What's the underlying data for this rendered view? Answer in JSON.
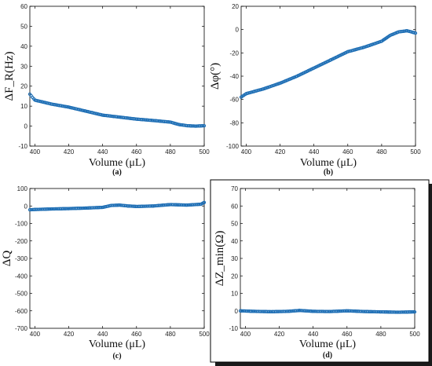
{
  "figure": {
    "frame_shadow": true
  },
  "chart_data": [
    {
      "type": "scatter",
      "panel": "a",
      "caption": "(a)",
      "xlabel": "Volume (μL)",
      "ylabel": "ΔF_R(Hz)",
      "xlim": [
        397,
        500
      ],
      "ylim": [
        -10,
        60
      ],
      "xticks": [
        400,
        420,
        440,
        460,
        480,
        500
      ],
      "yticks": [
        -10,
        0,
        10,
        20,
        30,
        40,
        50,
        60
      ],
      "marker_color": "#1f6fb5",
      "series": [
        {
          "x": [
            397,
            400,
            405,
            410,
            420,
            430,
            440,
            450,
            460,
            470,
            480,
            485,
            490,
            495,
            500
          ],
          "y": [
            16,
            13,
            12,
            11,
            9.5,
            7.5,
            5.5,
            4.5,
            3.5,
            2.8,
            2.0,
            0.8,
            0.2,
            0,
            0.2
          ]
        }
      ]
    },
    {
      "type": "scatter",
      "panel": "b",
      "caption": "(b)",
      "xlabel": "Volume (μL)",
      "ylabel": "Δφ(°)",
      "xlim": [
        397,
        500
      ],
      "ylim": [
        -100,
        20
      ],
      "xticks": [
        400,
        420,
        440,
        460,
        480,
        500
      ],
      "yticks": [
        -100,
        -80,
        -60,
        -40,
        -20,
        0,
        20
      ],
      "marker_color": "#1f6fb5",
      "series": [
        {
          "x": [
            397,
            400,
            410,
            420,
            430,
            440,
            450,
            460,
            470,
            480,
            485,
            490,
            495,
            500
          ],
          "y": [
            -58,
            -55,
            -51,
            -46,
            -40,
            -33,
            -26,
            -19,
            -15,
            -10,
            -5,
            -2,
            -1,
            -3
          ]
        }
      ]
    },
    {
      "type": "scatter",
      "panel": "c",
      "caption": "(c)",
      "xlabel": "Volume (μL)",
      "ylabel": "ΔQ",
      "xlim": [
        397,
        500
      ],
      "ylim": [
        -700,
        100
      ],
      "xticks": [
        400,
        420,
        440,
        460,
        480,
        500
      ],
      "yticks": [
        -700,
        -600,
        -500,
        -400,
        -300,
        -200,
        -100,
        0,
        100
      ],
      "marker_color": "#1f6fb5",
      "series": [
        {
          "x": [
            397,
            400,
            410,
            420,
            430,
            440,
            445,
            450,
            455,
            460,
            470,
            480,
            490,
            498,
            500
          ],
          "y": [
            -22,
            -20,
            -17,
            -15,
            -12,
            -8,
            3,
            5,
            0,
            -3,
            0,
            8,
            5,
            10,
            20
          ]
        }
      ]
    },
    {
      "type": "scatter",
      "panel": "d",
      "caption": "(d)",
      "xlabel": "Volume (μL)",
      "ylabel": "ΔZ_min(Ω)",
      "xlim": [
        397,
        500
      ],
      "ylim": [
        -10,
        70
      ],
      "xticks": [
        400,
        420,
        440,
        460,
        480,
        500
      ],
      "yticks": [
        -10,
        0,
        10,
        20,
        30,
        40,
        50,
        60,
        70
      ],
      "marker_color": "#1f6fb5",
      "series": [
        {
          "x": [
            397,
            405,
            415,
            425,
            432,
            440,
            450,
            460,
            470,
            480,
            490,
            500
          ],
          "y": [
            0,
            -0.3,
            -0.5,
            -0.3,
            0.2,
            -0.3,
            -0.4,
            0,
            -0.4,
            -0.6,
            -0.8,
            -0.6
          ]
        }
      ]
    }
  ]
}
